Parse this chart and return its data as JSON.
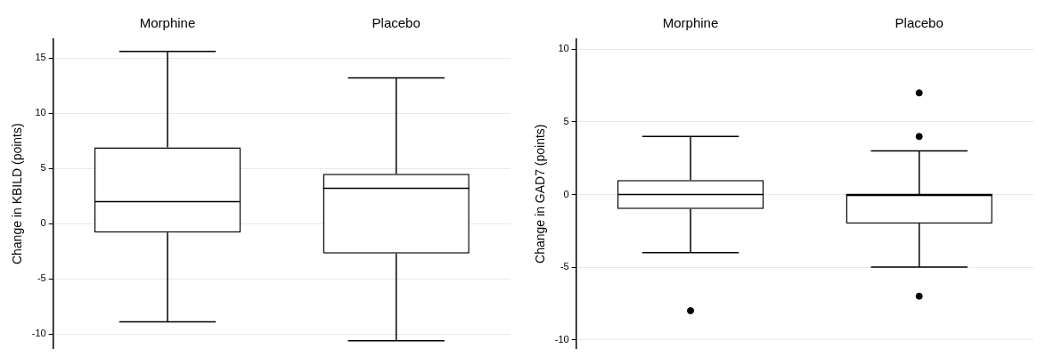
{
  "chart_data": [
    {
      "type": "box",
      "categories": [
        "Morphine",
        "Placebo"
      ],
      "ylabel": "Change in KBILD (points)",
      "ylim": [
        -11.3,
        16.7
      ],
      "yticks": [
        -10,
        -5,
        0,
        5,
        10,
        15
      ],
      "grid": "y",
      "legend": false,
      "boxes": [
        {
          "low": -8.9,
          "q1": -0.8,
          "median": 2.0,
          "q3": 6.9,
          "high": 15.6
        },
        {
          "low": -10.6,
          "q1": -2.7,
          "median": 3.2,
          "q3": 4.5,
          "high": 13.2
        }
      ]
    },
    {
      "type": "box",
      "categories": [
        "Morphine",
        "Placebo"
      ],
      "ylabel": "Change in GAD7 (points)",
      "ylim": [
        -10.6,
        10.7
      ],
      "yticks": [
        -10,
        -5,
        0,
        5,
        10
      ],
      "grid": "y",
      "legend": false,
      "boxes": [
        {
          "low": -4,
          "q1": -1,
          "median": 0,
          "q3": 1,
          "high": 4,
          "outliers": [
            -8
          ]
        },
        {
          "low": -5,
          "q1": -2,
          "median": 0,
          "q3": 0,
          "high": 3,
          "outliers": [
            7,
            4,
            -7
          ]
        }
      ]
    }
  ]
}
